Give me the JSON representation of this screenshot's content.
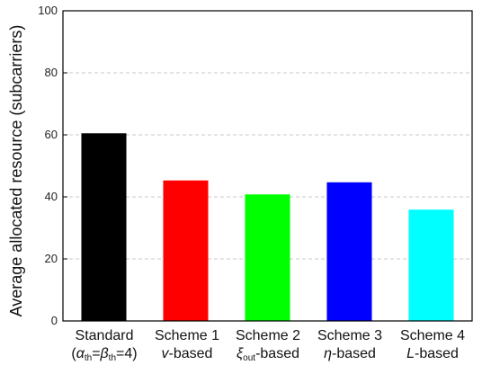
{
  "chart_data": {
    "type": "bar",
    "ylabel": "Average allocated resource (subcarriers)",
    "ylim": [
      0,
      100
    ],
    "yticks": [
      0,
      20,
      40,
      60,
      80,
      100
    ],
    "grid": true,
    "categories": [
      {
        "line1": "Standard",
        "line2": "(αth=βth=4)"
      },
      {
        "line1": "Scheme 1",
        "line2": "v-based"
      },
      {
        "line1": "Scheme 2",
        "line2": "ξout-based"
      },
      {
        "line1": "Scheme 3",
        "line2": "η-based"
      },
      {
        "line1": "Scheme 4",
        "line2": "L-based"
      }
    ],
    "values": [
      60.5,
      45.3,
      40.8,
      44.7,
      35.9
    ],
    "colors": [
      "#000000",
      "#ff0000",
      "#00ff00",
      "#0000ff",
      "#00ffff"
    ]
  }
}
